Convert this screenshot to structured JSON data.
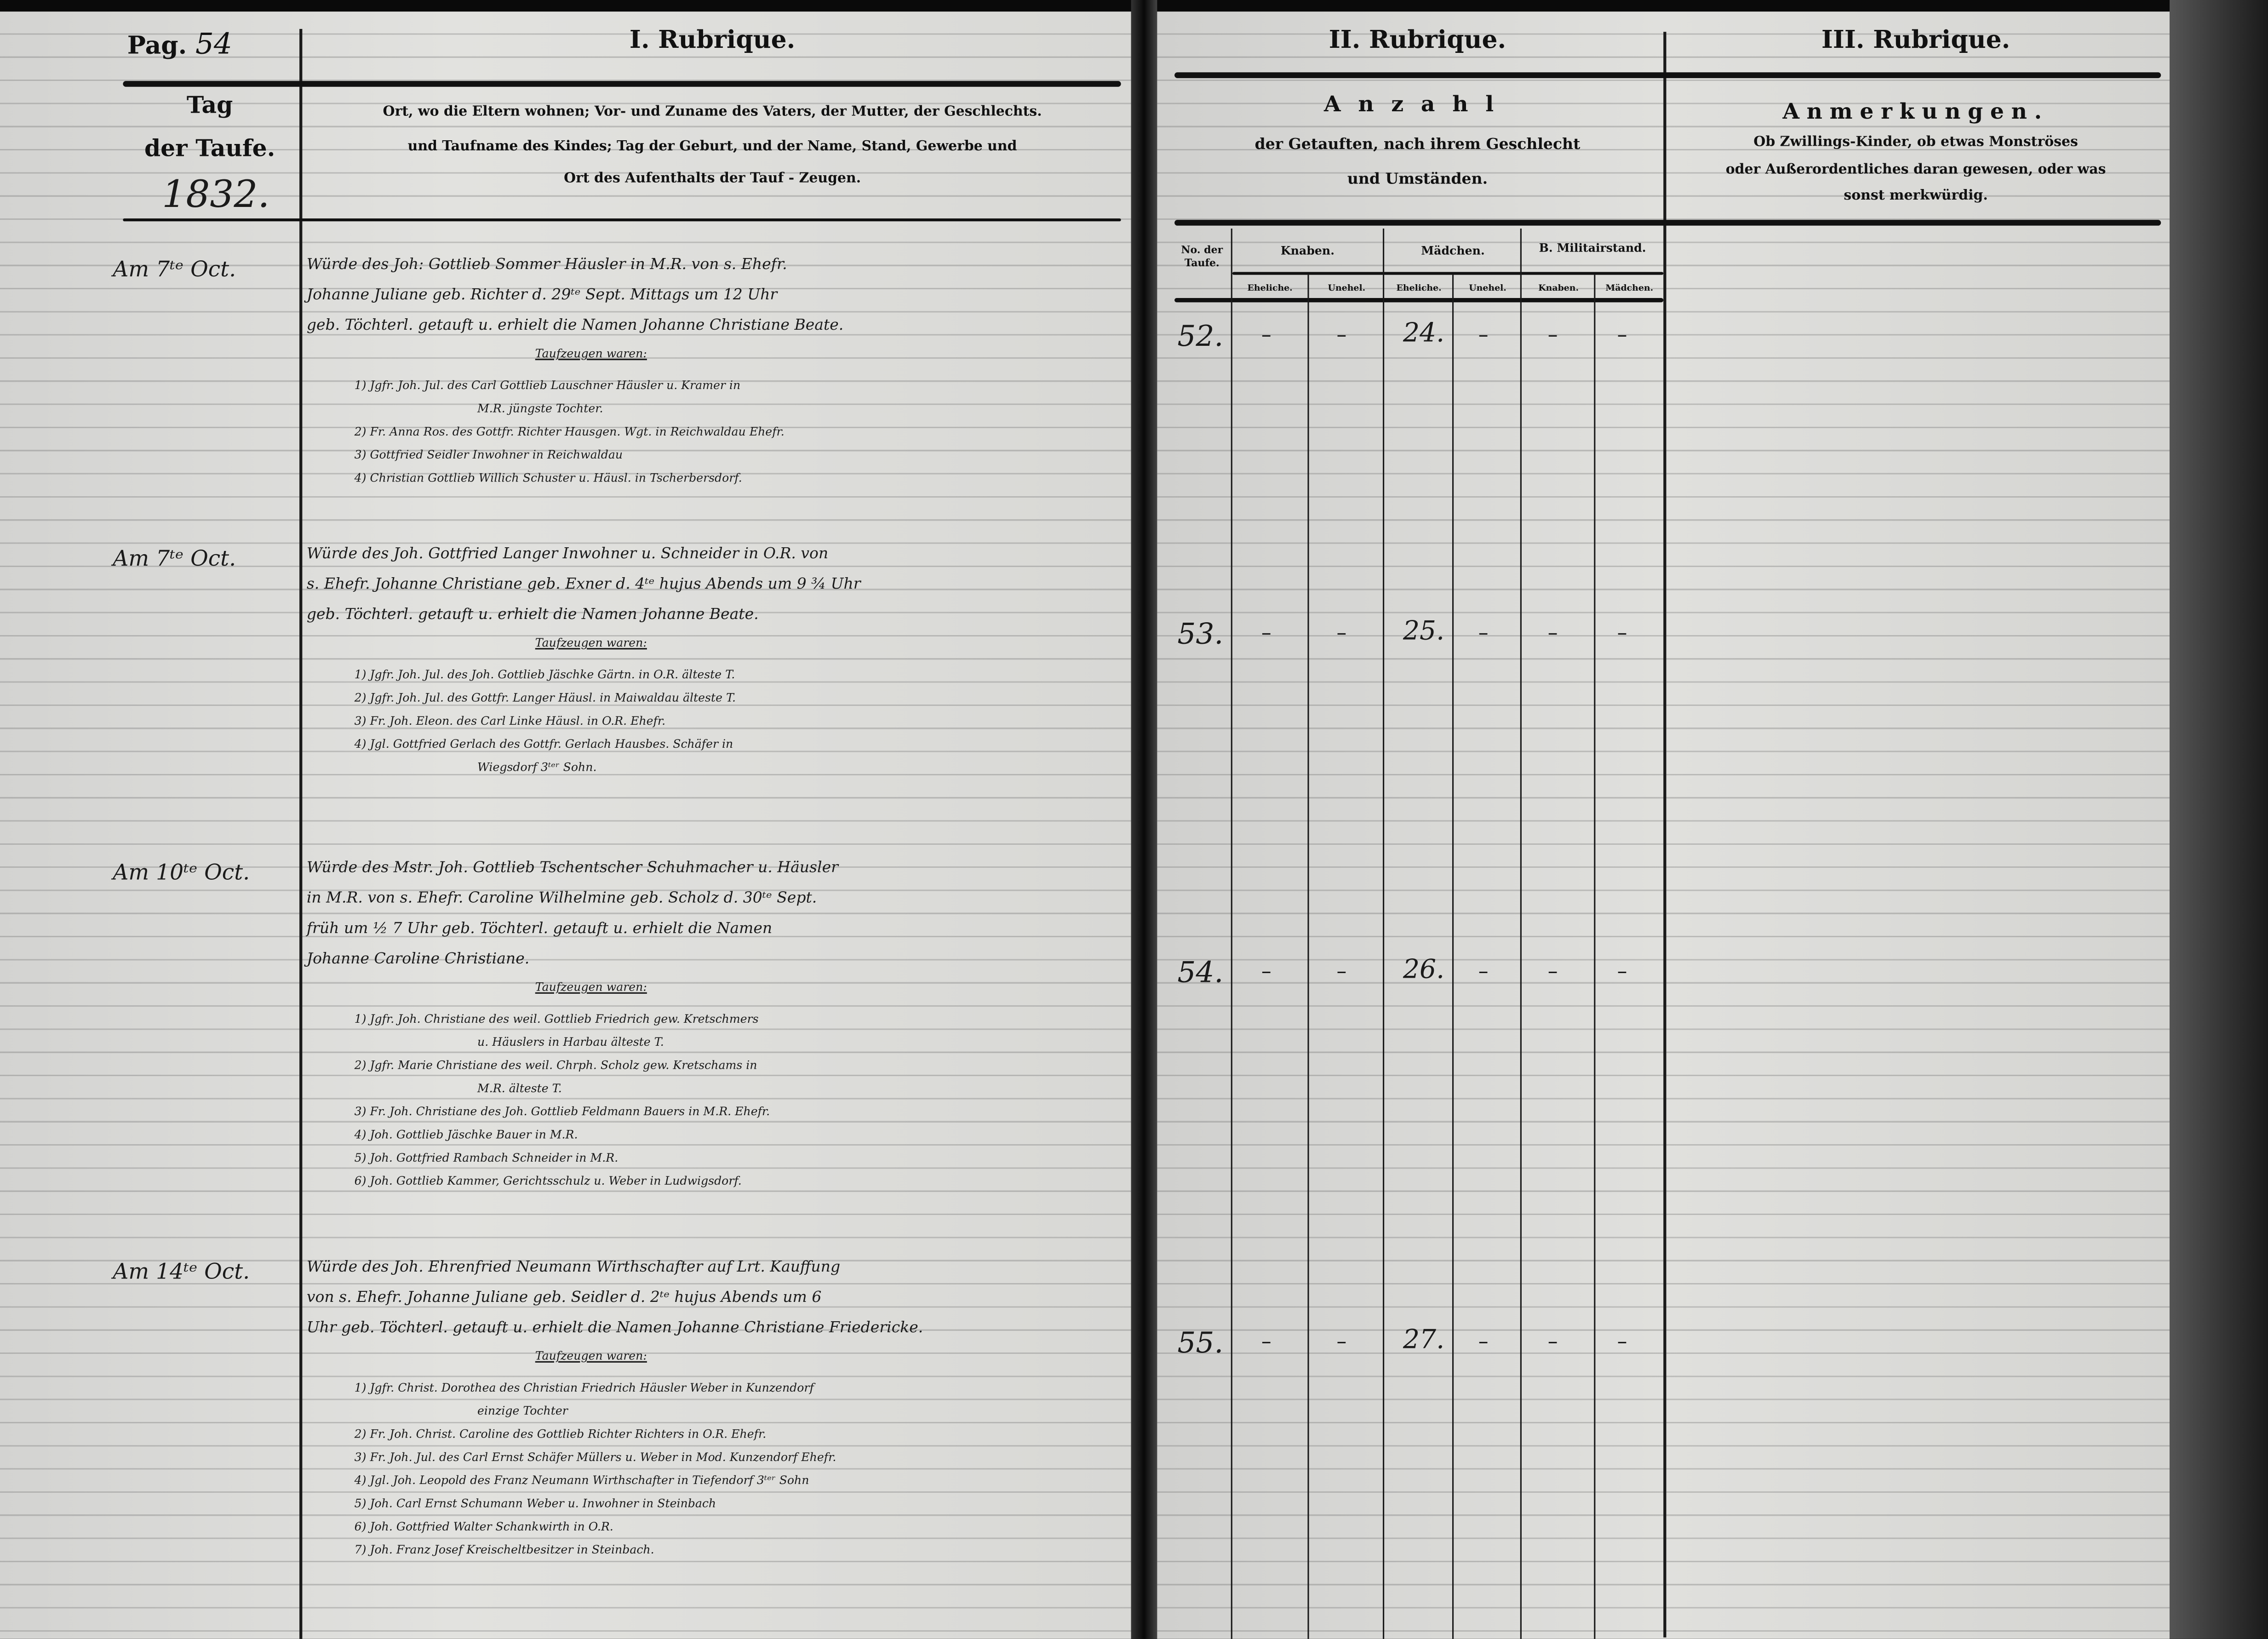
{
  "header": {
    "page_label": "Pag.",
    "page_number": "54",
    "rubrique_1": "I. Rubrique.",
    "rubrique_2": "II. Rubrique.",
    "rubrique_3": "III. Rubrique.",
    "col_date_line1": "Tag",
    "col_date_line2": "der Taufe.",
    "year": "1832.",
    "col1_desc_line1": "Ort, wo die Eltern wohnen; Vor- und Zuname des Vaters, der Mutter, der Geschlechts.",
    "col1_desc_line2": "und Taufname des Kindes; Tag der Geburt, und der Name, Stand, Gewerbe und",
    "col1_desc_line3": "Ort des Aufenthalts der Tauf - Zeugen.",
    "col2_title": "Anzahl",
    "col2_desc_line1": "der Getauften, nach ihrem Geschlecht",
    "col2_desc_line2": "und Umständen.",
    "col3_title": "Anmerkungen.",
    "col3_desc_line1": "Ob Zwillings-Kinder, ob etwas Monströses",
    "col3_desc_line2": "oder Außerordentliches daran gewesen, oder was",
    "col3_desc_line3": "sonst merkwürdig.",
    "sub_no": "No. der Taufe.",
    "sub_knaben": "Knaben.",
    "sub_maedchen": "Mädchen.",
    "sub_militair": "B. Militairstand.",
    "sub_ehel1": "Eheliche.",
    "sub_unehel1": "Unehel.",
    "sub_ehel2": "Eheliche.",
    "sub_unehel2": "Unehel.",
    "sub_mil_knaben": "Knaben.",
    "sub_mil_maedchen": "Mädchen."
  },
  "entries": [
    {
      "date": "Am 7ᵗᵉ Oct.",
      "no": "52.",
      "knaben_ehel": "–",
      "knaben_unehel": "–",
      "maedchen_ehel": "24.",
      "maedchen_unehel": "–",
      "mil_knaben": "–",
      "mil_maedchen": "–",
      "lines": [
        "Würde des Joh: Gottlieb Sommer Häusler in M.R. von s. Ehefr.",
        "Johanne Juliane geb. Richter d. 29ᵗᵉ Sept. Mittags um 12 Uhr",
        "geb. Töchterl. getauft u. erhielt die Namen Johanne Christiane Beate."
      ],
      "witness_heading": "Taufzeugen waren:",
      "witnesses": [
        "1) Jgfr. Joh. Jul. des Carl Gottlieb Lauschner Häusler u. Kramer in",
        "M.R. jüngste Tochter.",
        "2) Fr. Anna Ros. des Gottfr. Richter Hausgen. Wgt. in Reichwaldau Ehefr.",
        "3) Gottfried Seidler Inwohner in Reichwaldau",
        "4) Christian Gottlieb Willich Schuster u. Häusl. in Tscherbersdorf."
      ]
    },
    {
      "date": "Am 7ᵗᵉ Oct.",
      "no": "53.",
      "knaben_ehel": "–",
      "knaben_unehel": "–",
      "maedchen_ehel": "25.",
      "maedchen_unehel": "–",
      "mil_knaben": "–",
      "mil_maedchen": "–",
      "lines": [
        "Würde des Joh. Gottfried Langer Inwohner u. Schneider in O.R. von",
        "s. Ehefr. Johanne Christiane geb. Exner d. 4ᵗᵉ hujus Abends um 9 ¾ Uhr",
        "geb. Töchterl. getauft u. erhielt die Namen Johanne Beate."
      ],
      "witness_heading": "Taufzeugen waren:",
      "witnesses": [
        "1) Jgfr. Joh. Jul. des Joh. Gottlieb Jäschke Gärtn. in O.R. älteste T.",
        "2) Jgfr. Joh. Jul. des Gottfr. Langer Häusl. in Maiwaldau älteste T.",
        "3) Fr. Joh. Eleon. des Carl Linke Häusl. in O.R. Ehefr.",
        "4) Jgl. Gottfried Gerlach des Gottfr. Gerlach Hausbes. Schäfer in",
        "Wiegsdorf 3ᵗᵉʳ Sohn."
      ]
    },
    {
      "date": "Am 10ᵗᵉ Oct.",
      "no": "54.",
      "knaben_ehel": "–",
      "knaben_unehel": "–",
      "maedchen_ehel": "26.",
      "maedchen_unehel": "–",
      "mil_knaben": "–",
      "mil_maedchen": "–",
      "lines": [
        "Würde des Mstr. Joh. Gottlieb Tschentscher Schuhmacher u. Häusler",
        "in M.R. von s. Ehefr. Caroline Wilhelmine geb. Scholz d. 30ᵗᵉ Sept.",
        "früh um ½ 7 Uhr geb. Töchterl. getauft u. erhielt die Namen",
        "Johanne Caroline Christiane."
      ],
      "witness_heading": "Taufzeugen waren:",
      "witnesses": [
        "1) Jgfr. Joh. Christiane des weil. Gottlieb Friedrich gew. Kretschmers",
        "u. Häuslers in Harbau älteste T.",
        "2) Jgfr. Marie Christiane des weil. Chrph. Scholz gew. Kretschams in",
        "M.R. älteste T.",
        "3) Fr. Joh. Christiane des Joh. Gottlieb Feldmann Bauers in M.R. Ehefr.",
        "4) Joh. Gottlieb Jäschke Bauer in M.R.",
        "5) Joh. Gottfried Rambach Schneider in M.R.",
        "6) Joh. Gottlieb Kammer, Gerichtsschulz u. Weber in Ludwigsdorf."
      ]
    },
    {
      "date": "Am 14ᵗᵉ Oct.",
      "no": "55.",
      "knaben_ehel": "–",
      "knaben_unehel": "–",
      "maedchen_ehel": "27.",
      "maedchen_unehel": "–",
      "mil_knaben": "–",
      "mil_maedchen": "–",
      "lines": [
        "Würde des Joh. Ehrenfried Neumann Wirthschafter auf Lrt. Kauffung",
        "von s. Ehefr. Johanne Juliane geb. Seidler d. 2ᵗᵉ hujus Abends um 6",
        "Uhr geb. Töchterl. getauft u. erhielt die Namen Johanne Christiane Friedericke."
      ],
      "witness_heading": "Taufzeugen waren:",
      "witnesses": [
        "1) Jgfr. Christ. Dorothea des Christian Friedrich Häusler Weber in Kunzendorf",
        "einzige Tochter",
        "2) Fr. Joh. Christ. Caroline des Gottlieb Richter Richters in O.R. Ehefr.",
        "3) Fr. Joh. Jul. des Carl Ernst Schäfer Müllers u. Weber in Mod. Kunzendorf Ehefr.",
        "4) Jgl. Joh. Leopold des Franz Neumann Wirthschafter in Tiefendorf 3ᵗᵉʳ Sohn",
        "5) Joh. Carl Ernst Schumann Weber u. Inwohner in Steinbach",
        "6) Joh. Gottfried Walter Schankwirth in O.R.",
        "7) Joh. Franz Josef Kreischeltbesitzer in Steinbach."
      ]
    }
  ],
  "colors": {
    "paper": "#dcdcda",
    "ink": "#1a1a1a",
    "film_border": "#111111"
  }
}
